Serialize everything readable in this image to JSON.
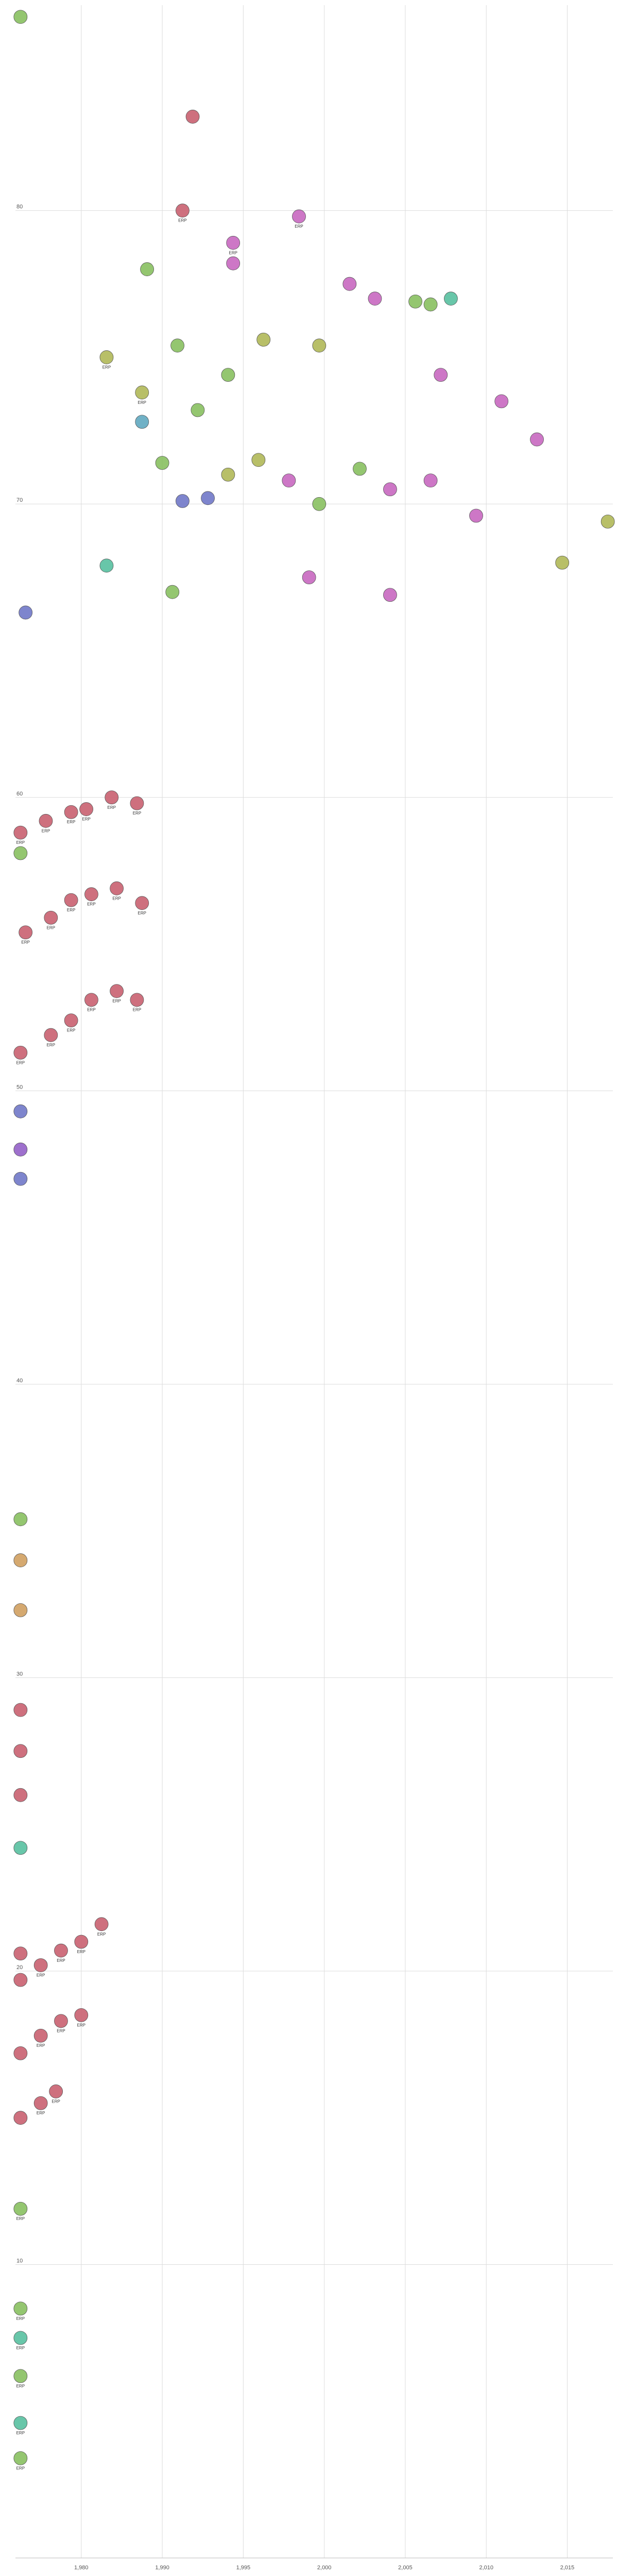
{
  "chart_data": {
    "type": "scatter",
    "title": "",
    "xlabel": "",
    "ylabel": "",
    "xlim": [
      1962,
      2021
    ],
    "ylim": [
      0,
      87
    ],
    "grid": true,
    "x_ticks": [
      {
        "value": 1968.5,
        "label": "1,980"
      },
      {
        "value": 1976.5,
        "label": "1,990"
      },
      {
        "value": 1984.5,
        "label": "1,995"
      },
      {
        "value": 1992.5,
        "label": "2,000"
      },
      {
        "value": 2000.5,
        "label": "2,005"
      },
      {
        "value": 2008.5,
        "label": "2,010"
      },
      {
        "value": 2016.5,
        "label": "2,015"
      }
    ],
    "y_ticks": [
      {
        "value": 10,
        "label": "10"
      },
      {
        "value": 20,
        "label": "20"
      },
      {
        "value": 30,
        "label": "30"
      },
      {
        "value": 40,
        "label": "40"
      },
      {
        "value": 50,
        "label": "50"
      },
      {
        "value": 60,
        "label": "60"
      },
      {
        "value": 70,
        "label": "70"
      },
      {
        "value": 80,
        "label": "80"
      }
    ],
    "colors": {
      "magenta": "#c868c0",
      "pink": "#c96070",
      "purple": "#9460c8",
      "blue": "#7078c8",
      "green": "#88c060",
      "olive": "#b0b858",
      "teal": "#58c0a0",
      "orange": "#d0a060",
      "cyan": "#60a8c0"
    },
    "series_note_hidden": true,
    "points": [
      {
        "x": 1962.5,
        "y": 86.6,
        "c": "green",
        "label": ""
      },
      {
        "x": 1979.5,
        "y": 83.2,
        "c": "pink",
        "label": ""
      },
      {
        "x": 1978.5,
        "y": 80.0,
        "c": "pink",
        "label": "ERP"
      },
      {
        "x": 1990.0,
        "y": 79.8,
        "c": "magenta",
        "label": "ERP"
      },
      {
        "x": 1983.5,
        "y": 78.9,
        "c": "magenta",
        "label": "ERP"
      },
      {
        "x": 1983.5,
        "y": 78.2,
        "c": "magenta",
        "label": ""
      },
      {
        "x": 1975.0,
        "y": 78.0,
        "c": "green",
        "label": ""
      },
      {
        "x": 1995.0,
        "y": 77.5,
        "c": "magenta",
        "label": ""
      },
      {
        "x": 1997.5,
        "y": 77.0,
        "c": "magenta",
        "label": ""
      },
      {
        "x": 2001.5,
        "y": 76.9,
        "c": "green",
        "label": ""
      },
      {
        "x": 2003.0,
        "y": 76.8,
        "c": "green",
        "label": ""
      },
      {
        "x": 2005.0,
        "y": 77.0,
        "c": "teal",
        "label": ""
      },
      {
        "x": 1978.0,
        "y": 75.4,
        "c": "green",
        "label": ""
      },
      {
        "x": 1971.0,
        "y": 75.0,
        "c": "olive",
        "label": "ERP"
      },
      {
        "x": 1986.5,
        "y": 75.6,
        "c": "olive",
        "label": ""
      },
      {
        "x": 1992.0,
        "y": 75.4,
        "c": "olive",
        "label": ""
      },
      {
        "x": 1974.5,
        "y": 73.8,
        "c": "olive",
        "label": "ERP"
      },
      {
        "x": 1983.0,
        "y": 74.4,
        "c": "green",
        "label": ""
      },
      {
        "x": 1980.0,
        "y": 73.2,
        "c": "green",
        "label": ""
      },
      {
        "x": 2004.0,
        "y": 74.4,
        "c": "magenta",
        "label": ""
      },
      {
        "x": 2010.0,
        "y": 73.5,
        "c": "magenta",
        "label": ""
      },
      {
        "x": 2013.5,
        "y": 72.2,
        "c": "magenta",
        "label": ""
      },
      {
        "x": 1974.5,
        "y": 72.8,
        "c": "cyan",
        "label": ""
      },
      {
        "x": 1976.5,
        "y": 71.4,
        "c": "green",
        "label": ""
      },
      {
        "x": 1978.5,
        "y": 70.1,
        "c": "blue",
        "label": ""
      },
      {
        "x": 1981.0,
        "y": 70.2,
        "c": "blue",
        "label": ""
      },
      {
        "x": 1983.0,
        "y": 71.0,
        "c": "olive",
        "label": ""
      },
      {
        "x": 1986.0,
        "y": 71.5,
        "c": "olive",
        "label": ""
      },
      {
        "x": 1989.0,
        "y": 70.8,
        "c": "magenta",
        "label": ""
      },
      {
        "x": 1992.0,
        "y": 70.0,
        "c": "green",
        "label": ""
      },
      {
        "x": 1996.0,
        "y": 71.2,
        "c": "green",
        "label": ""
      },
      {
        "x": 1999.0,
        "y": 70.5,
        "c": "magenta",
        "label": ""
      },
      {
        "x": 2003.0,
        "y": 70.8,
        "c": "magenta",
        "label": ""
      },
      {
        "x": 2007.5,
        "y": 69.6,
        "c": "magenta",
        "label": ""
      },
      {
        "x": 2016.0,
        "y": 68.0,
        "c": "olive",
        "label": ""
      },
      {
        "x": 2020.5,
        "y": 69.4,
        "c": "olive",
        "label": ""
      },
      {
        "x": 1971.0,
        "y": 67.9,
        "c": "teal",
        "label": ""
      },
      {
        "x": 1963.0,
        "y": 66.3,
        "c": "blue",
        "label": ""
      },
      {
        "x": 1977.5,
        "y": 67.0,
        "c": "green",
        "label": ""
      },
      {
        "x": 1991.0,
        "y": 67.5,
        "c": "magenta",
        "label": ""
      },
      {
        "x": 1999.0,
        "y": 66.9,
        "c": "magenta",
        "label": ""
      },
      {
        "x": 1971.5,
        "y": 60.0,
        "c": "pink",
        "label": "ERP"
      },
      {
        "x": 1974.0,
        "y": 59.8,
        "c": "pink",
        "label": "ERP"
      },
      {
        "x": 1962.5,
        "y": 58.8,
        "c": "pink",
        "label": "ERP"
      },
      {
        "x": 1965.0,
        "y": 59.2,
        "c": "pink",
        "label": "ERP"
      },
      {
        "x": 1967.5,
        "y": 59.5,
        "c": "pink",
        "label": "ERP"
      },
      {
        "x": 1969.0,
        "y": 59.6,
        "c": "pink",
        "label": "ERP"
      },
      {
        "x": 1962.5,
        "y": 58.1,
        "c": "green",
        "label": ""
      },
      {
        "x": 1963.0,
        "y": 55.4,
        "c": "pink",
        "label": "ERP"
      },
      {
        "x": 1965.5,
        "y": 55.9,
        "c": "pink",
        "label": "ERP"
      },
      {
        "x": 1967.5,
        "y": 56.5,
        "c": "pink",
        "label": "ERP"
      },
      {
        "x": 1969.5,
        "y": 56.7,
        "c": "pink",
        "label": "ERP"
      },
      {
        "x": 1972.0,
        "y": 56.9,
        "c": "pink",
        "label": "ERP"
      },
      {
        "x": 1974.5,
        "y": 56.4,
        "c": "pink",
        "label": "ERP"
      },
      {
        "x": 1962.5,
        "y": 51.3,
        "c": "pink",
        "label": "ERP"
      },
      {
        "x": 1965.5,
        "y": 51.9,
        "c": "pink",
        "label": "ERP"
      },
      {
        "x": 1967.5,
        "y": 52.4,
        "c": "pink",
        "label": "ERP"
      },
      {
        "x": 1969.5,
        "y": 53.1,
        "c": "pink",
        "label": "ERP"
      },
      {
        "x": 1972.0,
        "y": 53.4,
        "c": "pink",
        "label": "ERP"
      },
      {
        "x": 1974.0,
        "y": 53.1,
        "c": "pink",
        "label": "ERP"
      },
      {
        "x": 1962.5,
        "y": 49.3,
        "c": "blue",
        "label": ""
      },
      {
        "x": 1962.5,
        "y": 48.0,
        "c": "purple",
        "label": ""
      },
      {
        "x": 1962.5,
        "y": 47.0,
        "c": "blue",
        "label": ""
      },
      {
        "x": 1962.5,
        "y": 35.4,
        "c": "green",
        "label": ""
      },
      {
        "x": 1962.5,
        "y": 34.0,
        "c": "orange",
        "label": ""
      },
      {
        "x": 1962.5,
        "y": 32.3,
        "c": "orange",
        "label": ""
      },
      {
        "x": 1962.5,
        "y": 28.9,
        "c": "pink",
        "label": ""
      },
      {
        "x": 1962.5,
        "y": 27.5,
        "c": "pink",
        "label": ""
      },
      {
        "x": 1962.5,
        "y": 26.0,
        "c": "pink",
        "label": ""
      },
      {
        "x": 1962.5,
        "y": 24.2,
        "c": "teal",
        "label": ""
      },
      {
        "x": 1962.5,
        "y": 20.6,
        "c": "pink",
        "label": ""
      },
      {
        "x": 1962.5,
        "y": 19.7,
        "c": "pink",
        "label": ""
      },
      {
        "x": 1964.5,
        "y": 20.2,
        "c": "pink",
        "label": "ERP"
      },
      {
        "x": 1966.5,
        "y": 20.7,
        "c": "pink",
        "label": "ERP"
      },
      {
        "x": 1968.5,
        "y": 21.0,
        "c": "pink",
        "label": "ERP"
      },
      {
        "x": 1970.5,
        "y": 21.6,
        "c": "pink",
        "label": "ERP"
      },
      {
        "x": 1962.5,
        "y": 17.2,
        "c": "pink",
        "label": ""
      },
      {
        "x": 1964.5,
        "y": 17.8,
        "c": "pink",
        "label": "ERP"
      },
      {
        "x": 1966.5,
        "y": 18.3,
        "c": "pink",
        "label": "ERP"
      },
      {
        "x": 1968.5,
        "y": 18.5,
        "c": "pink",
        "label": "ERP"
      },
      {
        "x": 1962.5,
        "y": 15.0,
        "c": "pink",
        "label": ""
      },
      {
        "x": 1964.5,
        "y": 15.5,
        "c": "pink",
        "label": "ERP"
      },
      {
        "x": 1966.0,
        "y": 15.9,
        "c": "pink",
        "label": "ERP"
      },
      {
        "x": 1962.5,
        "y": 11.9,
        "c": "green",
        "label": "ERP"
      },
      {
        "x": 1962.5,
        "y": 8.5,
        "c": "green",
        "label": "ERP"
      },
      {
        "x": 1962.5,
        "y": 7.5,
        "c": "teal",
        "label": "ERP"
      },
      {
        "x": 1962.5,
        "y": 6.2,
        "c": "green",
        "label": "ERP"
      },
      {
        "x": 1962.5,
        "y": 4.6,
        "c": "teal",
        "label": "ERP"
      },
      {
        "x": 1962.5,
        "y": 3.4,
        "c": "green",
        "label": "ERP"
      }
    ]
  }
}
